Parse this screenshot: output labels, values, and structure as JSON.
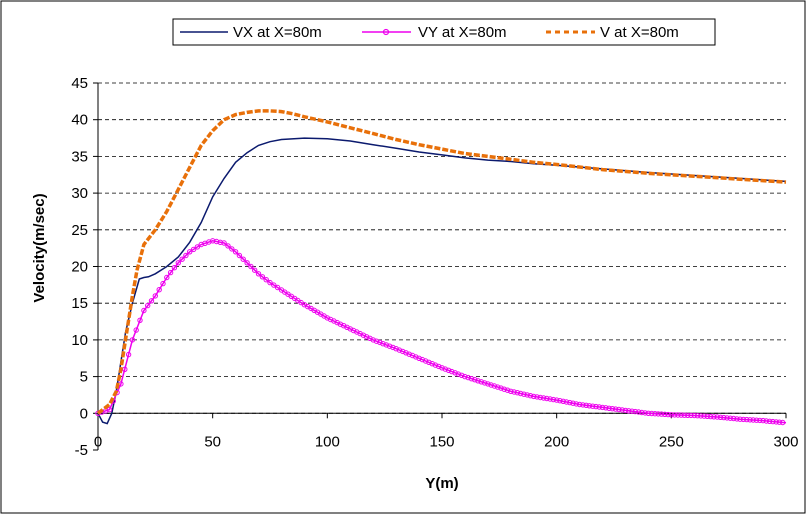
{
  "chart_data": {
    "type": "line",
    "xlabel": "Y(m)",
    "ylabel": "Velocity(m/sec)",
    "xlim": [
      0,
      300
    ],
    "ylim": [
      -5,
      45
    ],
    "xticks": [
      "0",
      "50",
      "100",
      "150",
      "200",
      "250",
      "300"
    ],
    "yticks": [
      "-5",
      "0",
      "5",
      "10",
      "15",
      "20",
      "25",
      "30",
      "35",
      "40",
      "45"
    ],
    "grid": "horizontal dashed",
    "legend_position": "top",
    "series": [
      {
        "name": "VX at X=80m",
        "color": "#0b1a6e",
        "style": "solid",
        "x": [
          0,
          2,
          4,
          6,
          8,
          10,
          12,
          15,
          18,
          20,
          22,
          25,
          30,
          35,
          40,
          45,
          50,
          55,
          60,
          65,
          70,
          75,
          80,
          90,
          100,
          110,
          120,
          130,
          140,
          150,
          160,
          170,
          180,
          190,
          200,
          220,
          240,
          260,
          280,
          300
        ],
        "y": [
          0,
          -1.2,
          -1.4,
          0,
          3,
          7,
          11,
          15,
          18.3,
          18.5,
          18.6,
          19,
          20,
          21.3,
          23.3,
          26,
          29.5,
          32,
          34.2,
          35.5,
          36.5,
          37,
          37.3,
          37.5,
          37.4,
          37.1,
          36.6,
          36.1,
          35.6,
          35.2,
          34.8,
          34.5,
          34.3,
          34.0,
          33.8,
          33.3,
          32.8,
          32.4,
          32.0,
          31.6
        ]
      },
      {
        "name": "VY at X=80m",
        "color": "#ee00ee",
        "style": "solid-circle-markers",
        "x": [
          0,
          5,
          10,
          15,
          20,
          25,
          30,
          35,
          40,
          45,
          50,
          55,
          60,
          65,
          70,
          75,
          80,
          90,
          100,
          110,
          120,
          130,
          140,
          150,
          160,
          170,
          180,
          190,
          200,
          210,
          220,
          230,
          240,
          250,
          260,
          270,
          280,
          290,
          300
        ],
        "y": [
          0,
          0.5,
          4,
          10,
          14,
          16,
          18.5,
          20.5,
          22,
          23,
          23.5,
          23.2,
          22,
          20.5,
          19,
          17.8,
          16.8,
          14.8,
          13,
          11.5,
          10,
          8.8,
          7.5,
          6.2,
          5,
          4,
          3,
          2.3,
          1.8,
          1.2,
          0.8,
          0.4,
          0,
          -0.2,
          -0.3,
          -0.5,
          -0.8,
          -1.0,
          -1.3
        ]
      },
      {
        "name": "V at X=80m",
        "color": "#e8700a",
        "style": "dashed-thick",
        "x": [
          0,
          5,
          8,
          10,
          12,
          15,
          17,
          20,
          25,
          30,
          35,
          40,
          45,
          50,
          55,
          60,
          65,
          70,
          75,
          80,
          85,
          90,
          100,
          110,
          120,
          130,
          140,
          150,
          160,
          170,
          180,
          190,
          200,
          220,
          240,
          260,
          280,
          300
        ],
        "y": [
          0,
          1.2,
          3,
          6,
          10,
          16,
          19.5,
          23,
          25,
          27.5,
          30.5,
          33.5,
          36.5,
          38.5,
          40,
          40.7,
          41,
          41.2,
          41.2,
          41.1,
          40.8,
          40.4,
          39.7,
          38.9,
          38.1,
          37.3,
          36.6,
          36.0,
          35.4,
          35.0,
          34.6,
          34.2,
          33.9,
          33.2,
          32.7,
          32.3,
          31.9,
          31.5
        ]
      }
    ]
  }
}
